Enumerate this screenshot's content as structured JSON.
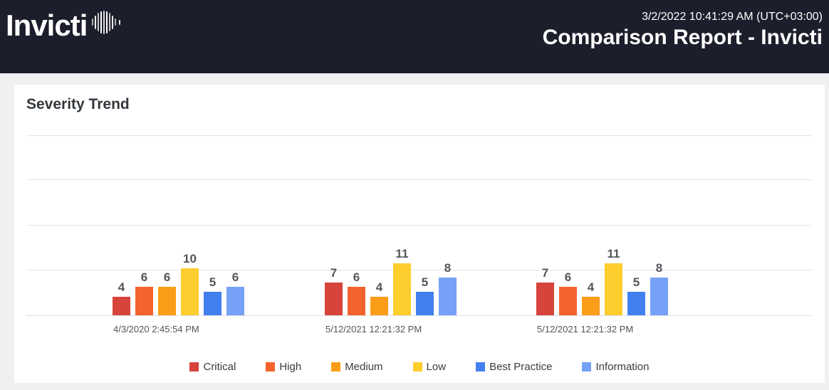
{
  "page": {
    "background": "#f0f0f0"
  },
  "header": {
    "background": "#1d1e2b",
    "logo_text": "Invicti",
    "logo_icon": "soundwave-icon",
    "timestamp": "3/2/2022 10:41:29 AM (UTC+03:00)",
    "title": "Comparison Report - Invicti"
  },
  "card": {
    "title": "Severity Trend"
  },
  "chart_data": {
    "type": "bar",
    "title": "Severity Trend",
    "categories": [
      "4/3/2020 2:45:54 PM",
      "5/12/2021 12:21:32 PM",
      "5/12/2021 12:21:32 PM"
    ],
    "series": [
      {
        "name": "Critical",
        "color": "#d6443c",
        "values": [
          4,
          7,
          7
        ]
      },
      {
        "name": "High",
        "color": "#f4632e",
        "values": [
          6,
          6,
          6
        ]
      },
      {
        "name": "Medium",
        "color": "#fb9d18",
        "values": [
          6,
          4,
          4
        ]
      },
      {
        "name": "Low",
        "color": "#fecd2e",
        "values": [
          10,
          11,
          11
        ]
      },
      {
        "name": "Best Practice",
        "color": "#4280f0",
        "values": [
          5,
          5,
          5
        ]
      },
      {
        "name": "Information",
        "color": "#76a1f7",
        "values": [
          6,
          8,
          8
        ]
      }
    ],
    "xlabel": "",
    "ylabel": "",
    "ylim": [
      0,
      40
    ],
    "gridline_step": 10,
    "grid": true,
    "value_labels": true,
    "legend_position": "bottom"
  }
}
